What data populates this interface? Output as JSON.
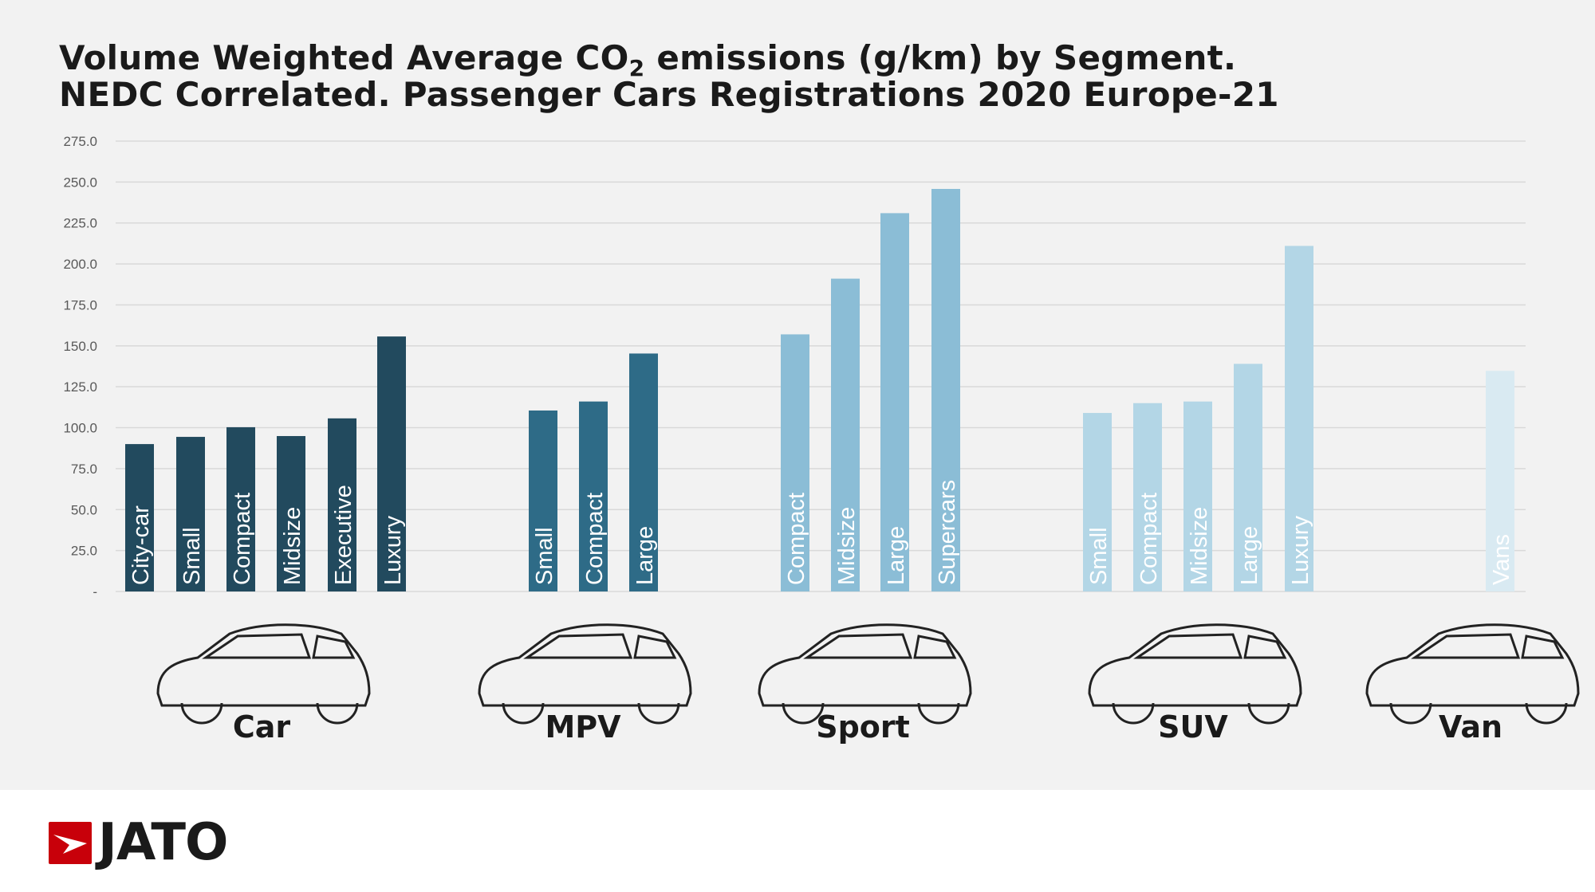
{
  "title": {
    "line1_pre": "Volume Weighted Average CO",
    "line1_sub": "2",
    "line1_post": " emissions (g/km) by Segment.",
    "line2": "NEDC Correlated. Passenger Cars Registrations 2020 Europe-21"
  },
  "logo": {
    "text": "JATO",
    "color": "#c8000a"
  },
  "chart_data": {
    "type": "bar",
    "title": "Volume Weighted Average CO2 emissions (g/km) by Segment. NEDC Correlated. Passenger Cars Registrations 2020 Europe-21",
    "ylim": [
      0,
      275
    ],
    "yticks": [
      "-",
      "25.0",
      "50.0",
      "75.0",
      "100.0",
      "125.0",
      "150.0",
      "175.0",
      "200.0",
      "225.0",
      "250.0",
      "275.0"
    ],
    "grid": true,
    "groups": [
      {
        "name": "Car",
        "color": "#224a5e",
        "categories": [
          "City-car",
          "Small",
          "Compact",
          "Midsize",
          "Executive",
          "Luxury"
        ],
        "values": [
          90.0,
          94.4,
          100.3,
          94.9,
          105.7,
          155.7
        ]
      },
      {
        "name": "MPV",
        "color": "#2e6b87",
        "categories": [
          "Small",
          "Compact",
          "Large"
        ],
        "values": [
          110.5,
          116.0,
          145.3
        ]
      },
      {
        "name": "Sport",
        "color": "#8bbdd6",
        "categories": [
          "Compact",
          "Midsize",
          "Large",
          "Supercars"
        ],
        "values": [
          157.0,
          191.0,
          231.0,
          245.8
        ]
      },
      {
        "name": "SUV",
        "color": "#b3d6e6",
        "categories": [
          "Small",
          "Compact",
          "Midsize",
          "Large",
          "Luxury"
        ],
        "values": [
          109.0,
          115.0,
          116.0,
          139.0,
          211.0
        ]
      },
      {
        "name": "Van",
        "color": "#d9eaf2",
        "categories": [
          "Vans"
        ],
        "values": [
          134.7
        ]
      }
    ]
  }
}
